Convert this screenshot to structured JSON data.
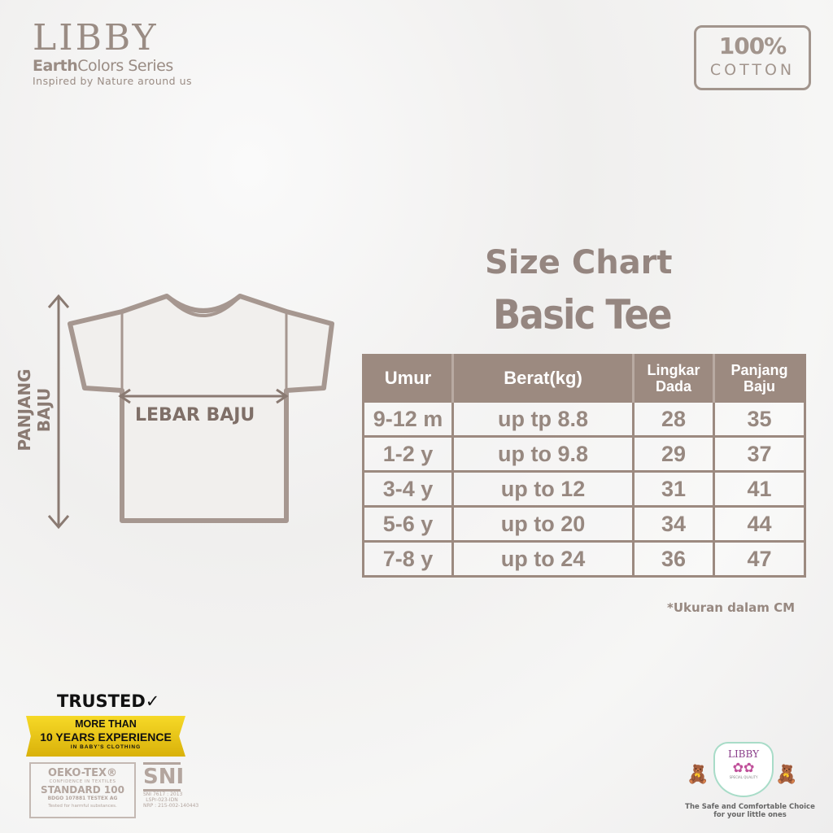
{
  "brand": {
    "name": "LIBBY",
    "series_bold": "Earth",
    "series_rest": "Colors Series",
    "tagline": "Inspired by Nature around us"
  },
  "cotton_badge": {
    "percent": "100%",
    "label": "COTTON"
  },
  "title": {
    "line1": "Size Chart",
    "line2": "Basic Tee"
  },
  "diagram": {
    "length_label": "PANJANG BAJU",
    "width_label": "LEBAR BAJU"
  },
  "table": {
    "headers": [
      "Umur",
      "Berat(kg)",
      "Lingkar Dada",
      "Panjang Baju"
    ],
    "rows": [
      [
        "9-12 m",
        "up tp 8.8",
        "28",
        "35"
      ],
      [
        "1-2 y",
        "up to 9.8",
        "29",
        "37"
      ],
      [
        "3-4 y",
        "up to 12",
        "31",
        "41"
      ],
      [
        "5-6 y",
        "up to 20",
        "34",
        "44"
      ],
      [
        "7-8 y",
        "up to 24",
        "36",
        "47"
      ]
    ]
  },
  "note": "*Ukuran dalam CM",
  "trust": {
    "trusted": "TRUSTED",
    "l1": "MORE THAN",
    "l2": "10 YEARS EXPERIENCE",
    "l3": "IN BABY'S CLOTHING"
  },
  "oeko": {
    "a": "OEKO-TEX®",
    "b": "CONFIDENCE IN TEXTILES",
    "c": "STANDARD 100",
    "d": "BDGO 107881 TESTEX AG",
    "e": "Tested for harmful substances."
  },
  "sni": {
    "logo": "SNI",
    "code": "SNI 7617 : 2013",
    "lspr": "LSPr-023-IDN",
    "nrp": "NRP : 215-002-140443"
  },
  "libby_badge": {
    "name": "LIBBY",
    "quality": "SPECIAL QUALITY",
    "slogan1": "The Safe and Comfortable Choice",
    "slogan2": "for your little ones"
  },
  "colors": {
    "primary": "#9c8a80",
    "banner": "#f6d927"
  }
}
